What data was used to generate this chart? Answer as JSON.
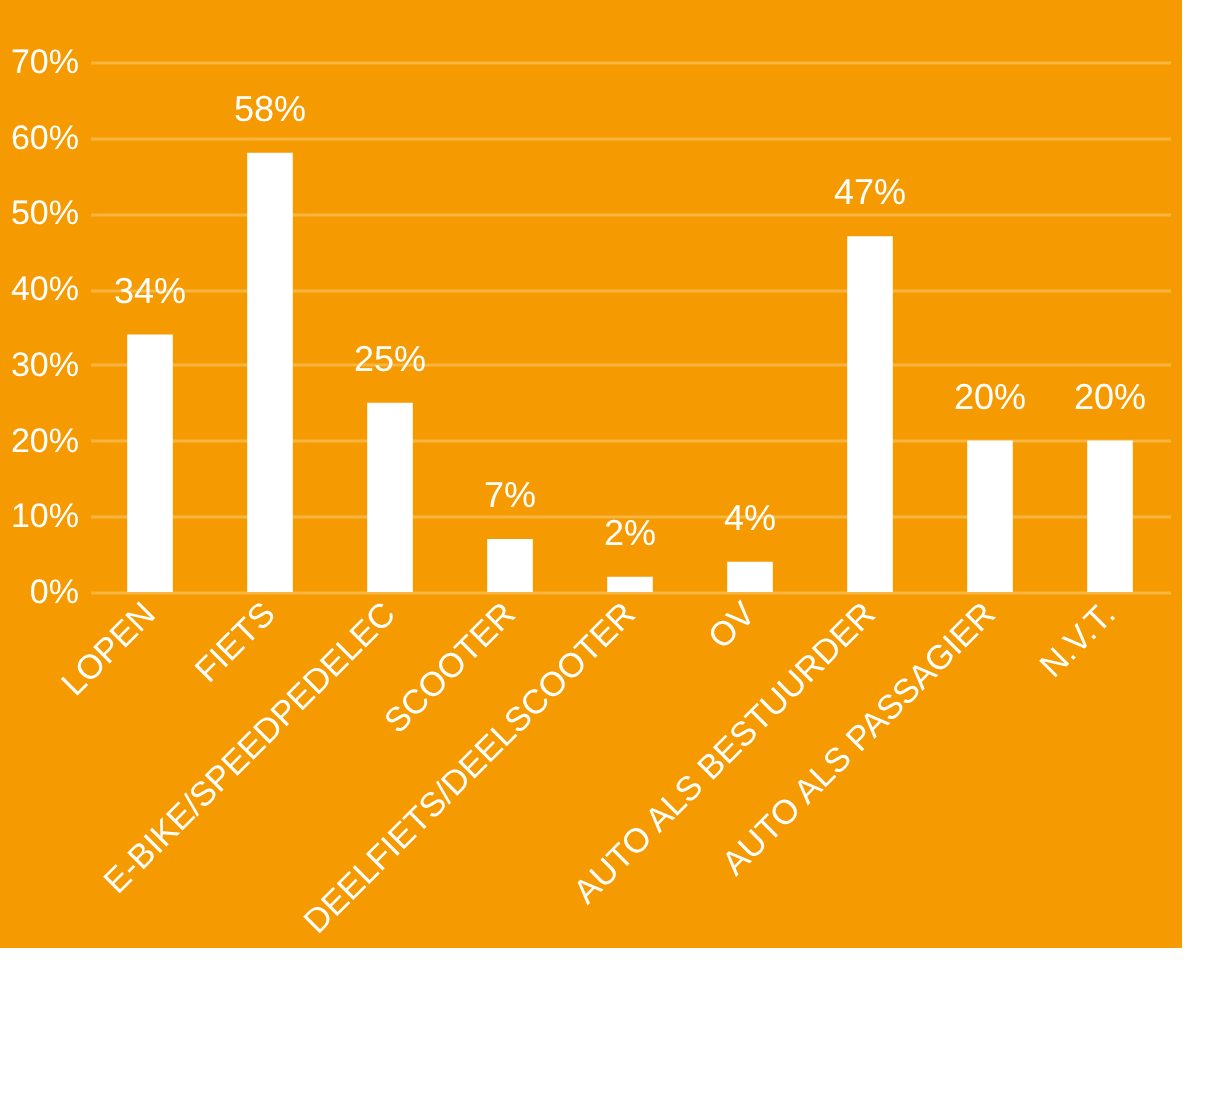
{
  "chart_data": {
    "type": "bar",
    "categories": [
      "LOPEN",
      "FIETS",
      "E-BIKE/SPEEDPEDELEC",
      "SCOOTER",
      "DEELFIETS/DEELSCOOTER",
      "OV",
      "AUTO ALS BESTUURDER",
      "AUTO ALS PASSAGIER",
      "N.V.T."
    ],
    "values": [
      34,
      58,
      25,
      7,
      2,
      4,
      47,
      20,
      20
    ],
    "value_labels": [
      "34%",
      "58%",
      "25%",
      "7%",
      "2%",
      "4%",
      "47%",
      "20%",
      "20%"
    ],
    "color": "#ffffff",
    "ylim": [
      0,
      70
    ],
    "yticks": [
      {
        "value": 0,
        "label": "0%"
      },
      {
        "value": 10,
        "label": "10%"
      },
      {
        "value": 20,
        "label": "20%"
      },
      {
        "value": 30,
        "label": "30%"
      },
      {
        "value": 40,
        "label": "40%"
      },
      {
        "value": 50,
        "label": "50%"
      },
      {
        "value": 60,
        "label": "60%"
      },
      {
        "value": 70,
        "label": "70%"
      }
    ],
    "grid": "y"
  }
}
